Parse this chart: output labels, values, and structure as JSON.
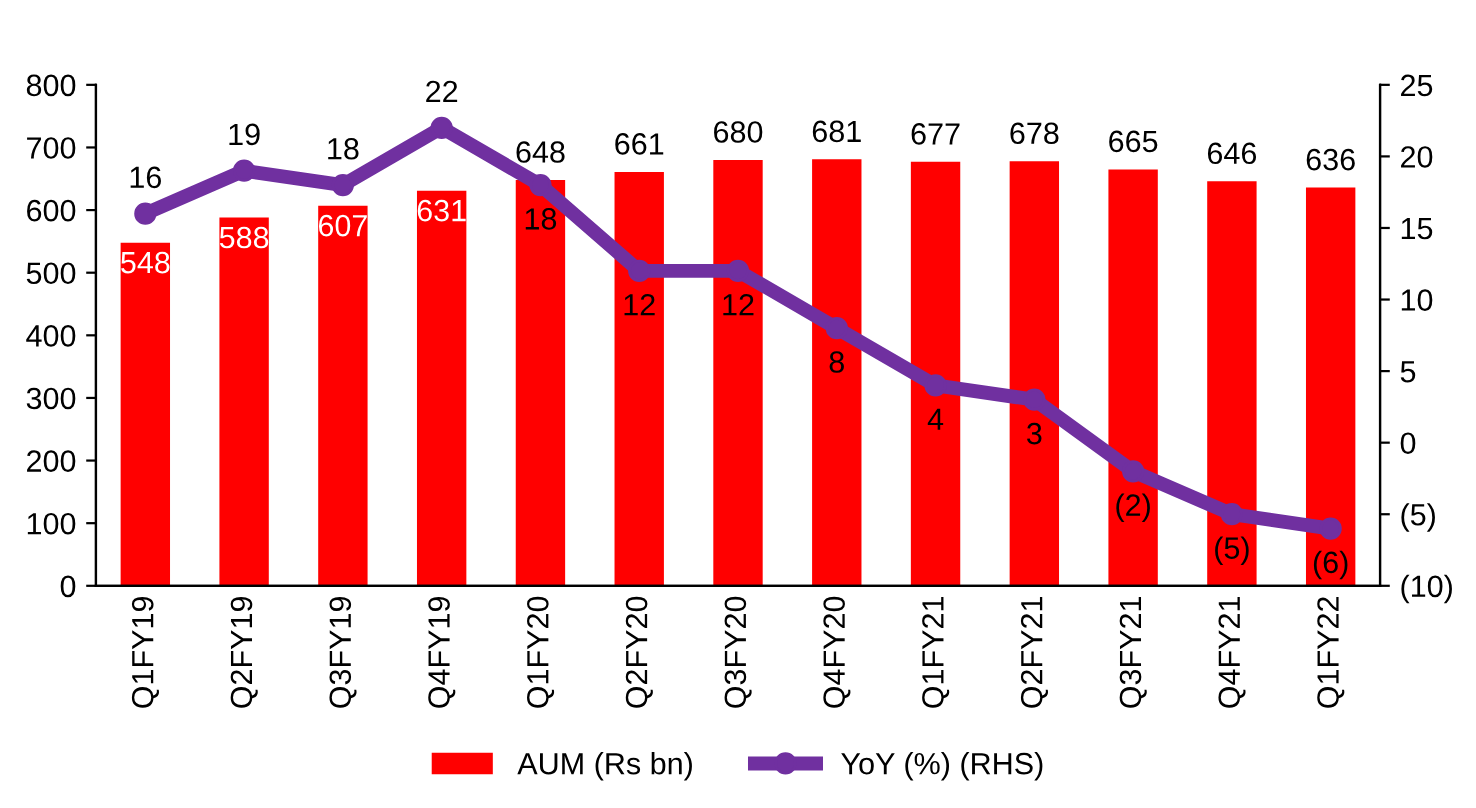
{
  "chart_data": {
    "type": "bar",
    "categories": [
      "Q1FY19",
      "Q2FY19",
      "Q3FY19",
      "Q4FY19",
      "Q1FY20",
      "Q2FY20",
      "Q3FY20",
      "Q4FY20",
      "Q1FY21",
      "Q2FY21",
      "Q3FY21",
      "Q4FY21",
      "Q1FY22"
    ],
    "series": [
      {
        "name": "AUM (Rs bn)",
        "type": "bar",
        "color": "#ff0000",
        "values": [
          548,
          588,
          607,
          631,
          648,
          661,
          680,
          681,
          677,
          678,
          665,
          646,
          636
        ],
        "value_labels": [
          "548",
          "588",
          "607",
          "631",
          "648",
          "661",
          "680",
          "681",
          "677",
          "678",
          "665",
          "646",
          "636"
        ]
      },
      {
        "name": "YoY (%) (RHS)",
        "type": "line",
        "axis": "y2",
        "color": "#7030a0",
        "marker": "circle",
        "line_style": "solid",
        "values": [
          16,
          19,
          18,
          22,
          18,
          12,
          12,
          8,
          4,
          3,
          -2,
          -5,
          -6
        ],
        "value_labels": [
          "16",
          "19",
          "18",
          "22",
          "18",
          "12",
          "12",
          "8",
          "4",
          "3",
          "(2)",
          "(5)",
          "(6)"
        ]
      }
    ],
    "ylim": [
      0,
      800
    ],
    "yticks": [
      0,
      100,
      200,
      300,
      400,
      500,
      600,
      700,
      800
    ],
    "y2lim": [
      -10,
      25
    ],
    "y2ticks": [
      {
        "value": -10,
        "label": "(10)"
      },
      {
        "value": -5,
        "label": "(5)"
      },
      0,
      5,
      10,
      15,
      20,
      25
    ],
    "grid": false,
    "legend": "bottom"
  }
}
